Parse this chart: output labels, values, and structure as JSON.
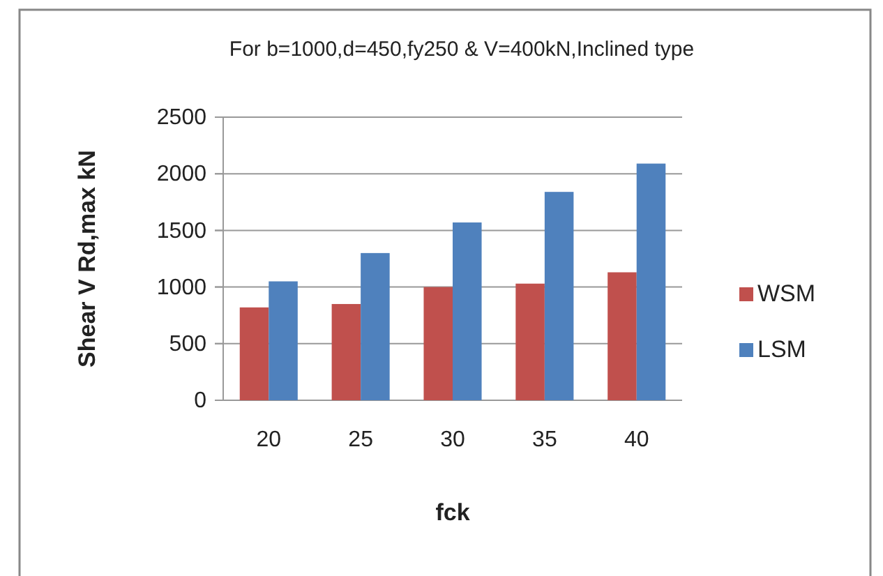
{
  "chart_data": {
    "type": "bar",
    "title": "For b=1000,d=450,fy250 & V=400kN,Inclined type",
    "xlabel": "fck",
    "ylabel": "Shear V Rd,max kN",
    "categories": [
      "20",
      "25",
      "30",
      "35",
      "40"
    ],
    "series": [
      {
        "name": "WSM",
        "color": "#c0504d",
        "values": [
          820,
          850,
          1000,
          1030,
          1130
        ]
      },
      {
        "name": "LSM",
        "color": "#4f81bd",
        "values": [
          1050,
          1300,
          1570,
          1840,
          2090
        ]
      }
    ],
    "ylim": [
      0,
      2500
    ],
    "yticks": [
      0,
      500,
      1000,
      1500,
      2000,
      2500
    ],
    "grid": "y",
    "legend": "right"
  }
}
